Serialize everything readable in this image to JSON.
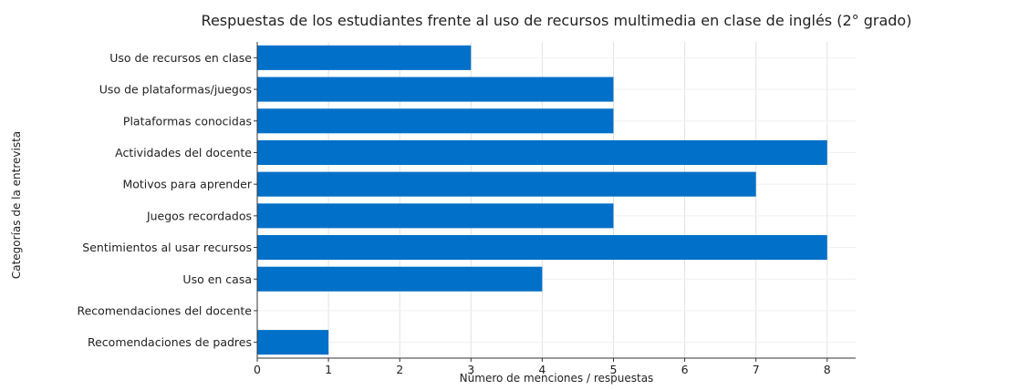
{
  "chart_data": {
    "type": "bar",
    "orientation": "horizontal",
    "title": "Respuestas de los estudiantes frente al uso de recursos multimedia en clase de inglés (2° grado)",
    "xlabel": "Número de menciones / respuestas",
    "ylabel": "Categorías de la entrevista",
    "categories": [
      "Uso de recursos en clase",
      "Uso de plataformas/juegos",
      "Plataformas conocidas",
      "Actividades del docente",
      "Motivos para aprender",
      "Juegos recordados",
      "Sentimientos al usar recursos",
      "Uso en casa",
      "Recomendaciones del docente",
      "Recomendaciones de padres"
    ],
    "values": [
      3,
      5,
      5,
      8,
      7,
      5,
      8,
      4,
      0,
      1
    ],
    "xlim": [
      0,
      8.4
    ],
    "xticks": [
      "0",
      "1",
      "2",
      "3",
      "4",
      "5",
      "6",
      "7",
      "8"
    ],
    "grid": true,
    "bar_color": "#0070c8"
  }
}
